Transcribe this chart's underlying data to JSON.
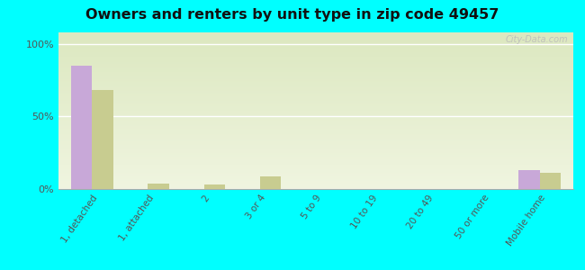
{
  "title": "Owners and renters by unit type in zip code 49457",
  "categories": [
    "1, detached",
    "1, attached",
    "2",
    "3 or 4",
    "5 to 9",
    "10 to 19",
    "20 to 49",
    "50 or more",
    "Mobile home"
  ],
  "owner_values": [
    85,
    0,
    0,
    0,
    0,
    0,
    0,
    0,
    13
  ],
  "renter_values": [
    68,
    4,
    3,
    9,
    0,
    0,
    0,
    0,
    11
  ],
  "owner_color": "#c8a8d8",
  "renter_color": "#c8cc90",
  "background_color": "#00ffff",
  "plot_bg_top": "#dce8c0",
  "plot_bg_bottom": "#f0f5e0",
  "ylabel_ticks": [
    "0%",
    "50%",
    "100%"
  ],
  "yticks": [
    0,
    50,
    100
  ],
  "ylim": [
    0,
    108
  ],
  "bar_width": 0.38,
  "watermark": "City-Data.com"
}
